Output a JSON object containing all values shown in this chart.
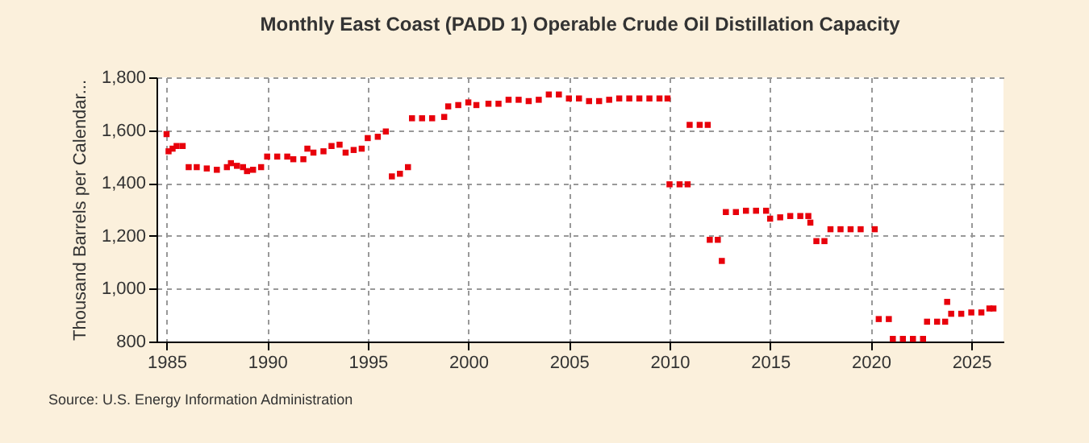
{
  "chart_data": {
    "type": "scatter",
    "title": "Monthly East Coast (PADD 1) Operable Crude Oil Distillation Capacity",
    "ylabel": "Thousand Barrels per Calendar...",
    "annotations": [
      "Source: U.S. Energy Information Administration"
    ],
    "x": [
      1985.0,
      1985.1,
      1985.3,
      1985.5,
      1985.8,
      1986.1,
      1986.5,
      1987.0,
      1987.5,
      1988.0,
      1988.2,
      1988.5,
      1988.8,
      1989.0,
      1989.3,
      1989.7,
      1990.0,
      1990.5,
      1991.0,
      1991.3,
      1991.8,
      1992.0,
      1992.3,
      1992.8,
      1993.2,
      1993.6,
      1993.9,
      1994.3,
      1994.7,
      1995.0,
      1995.5,
      1995.9,
      1996.2,
      1996.6,
      1997.0,
      1997.2,
      1997.7,
      1998.2,
      1998.8,
      1999.0,
      1999.5,
      2000.0,
      2000.4,
      2001.0,
      2001.5,
      2002.0,
      2002.5,
      2003.0,
      2003.5,
      2004.0,
      2004.5,
      2005.0,
      2005.5,
      2006.0,
      2006.5,
      2007.0,
      2007.5,
      2008.0,
      2008.5,
      2009.0,
      2009.5,
      2009.9,
      2010.0,
      2010.5,
      2010.9,
      2011.0,
      2011.5,
      2011.9,
      2012.0,
      2012.4,
      2012.6,
      2012.8,
      2013.3,
      2013.8,
      2014.3,
      2014.8,
      2015.0,
      2015.5,
      2016.0,
      2016.5,
      2016.9,
      2017.0,
      2017.3,
      2017.7,
      2018.0,
      2018.5,
      2019.0,
      2019.5,
      2020.2,
      2020.4,
      2020.9,
      2021.1,
      2021.6,
      2022.1,
      2022.6,
      2022.8,
      2023.3,
      2023.7,
      2023.8,
      2024.0,
      2024.5,
      2025.0,
      2025.5,
      2025.9,
      2026.1
    ],
    "series": [
      {
        "color": "#e8000b",
        "values": [
          1585,
          1520,
          1530,
          1540,
          1540,
          1460,
          1460,
          1455,
          1450,
          1460,
          1475,
          1465,
          1460,
          1445,
          1450,
          1460,
          1500,
          1500,
          1500,
          1490,
          1490,
          1530,
          1515,
          1520,
          1540,
          1545,
          1515,
          1525,
          1530,
          1570,
          1575,
          1595,
          1425,
          1435,
          1460,
          1645,
          1645,
          1645,
          1650,
          1690,
          1695,
          1705,
          1695,
          1700,
          1700,
          1715,
          1715,
          1710,
          1715,
          1735,
          1735,
          1720,
          1720,
          1710,
          1710,
          1715,
          1720,
          1720,
          1720,
          1720,
          1720,
          1720,
          1395,
          1395,
          1395,
          1620,
          1620,
          1620,
          1185,
          1185,
          1105,
          1290,
          1290,
          1295,
          1295,
          1295,
          1265,
          1270,
          1275,
          1275,
          1275,
          1250,
          1180,
          1180,
          1225,
          1225,
          1225,
          1225,
          1225,
          885,
          885,
          810,
          810,
          810,
          810,
          875,
          875,
          875,
          950,
          905,
          905,
          910,
          910,
          925,
          925
        ]
      }
    ],
    "xlim": [
      1984.5,
      2026.6
    ],
    "xticks": [
      1985,
      1990,
      1995,
      2000,
      2005,
      2010,
      2015,
      2020,
      2025
    ],
    "ylim": [
      800,
      1800
    ],
    "yticks": [
      800,
      {
        "value": 1000,
        "label": "1,000"
      },
      {
        "value": 1200,
        "label": "1,200"
      },
      {
        "value": 1400,
        "label": "1,400"
      },
      {
        "value": 1600,
        "label": "1,600"
      },
      {
        "value": 1800,
        "label": "1,800"
      }
    ],
    "grid": true,
    "marker": "square",
    "legend": false
  }
}
